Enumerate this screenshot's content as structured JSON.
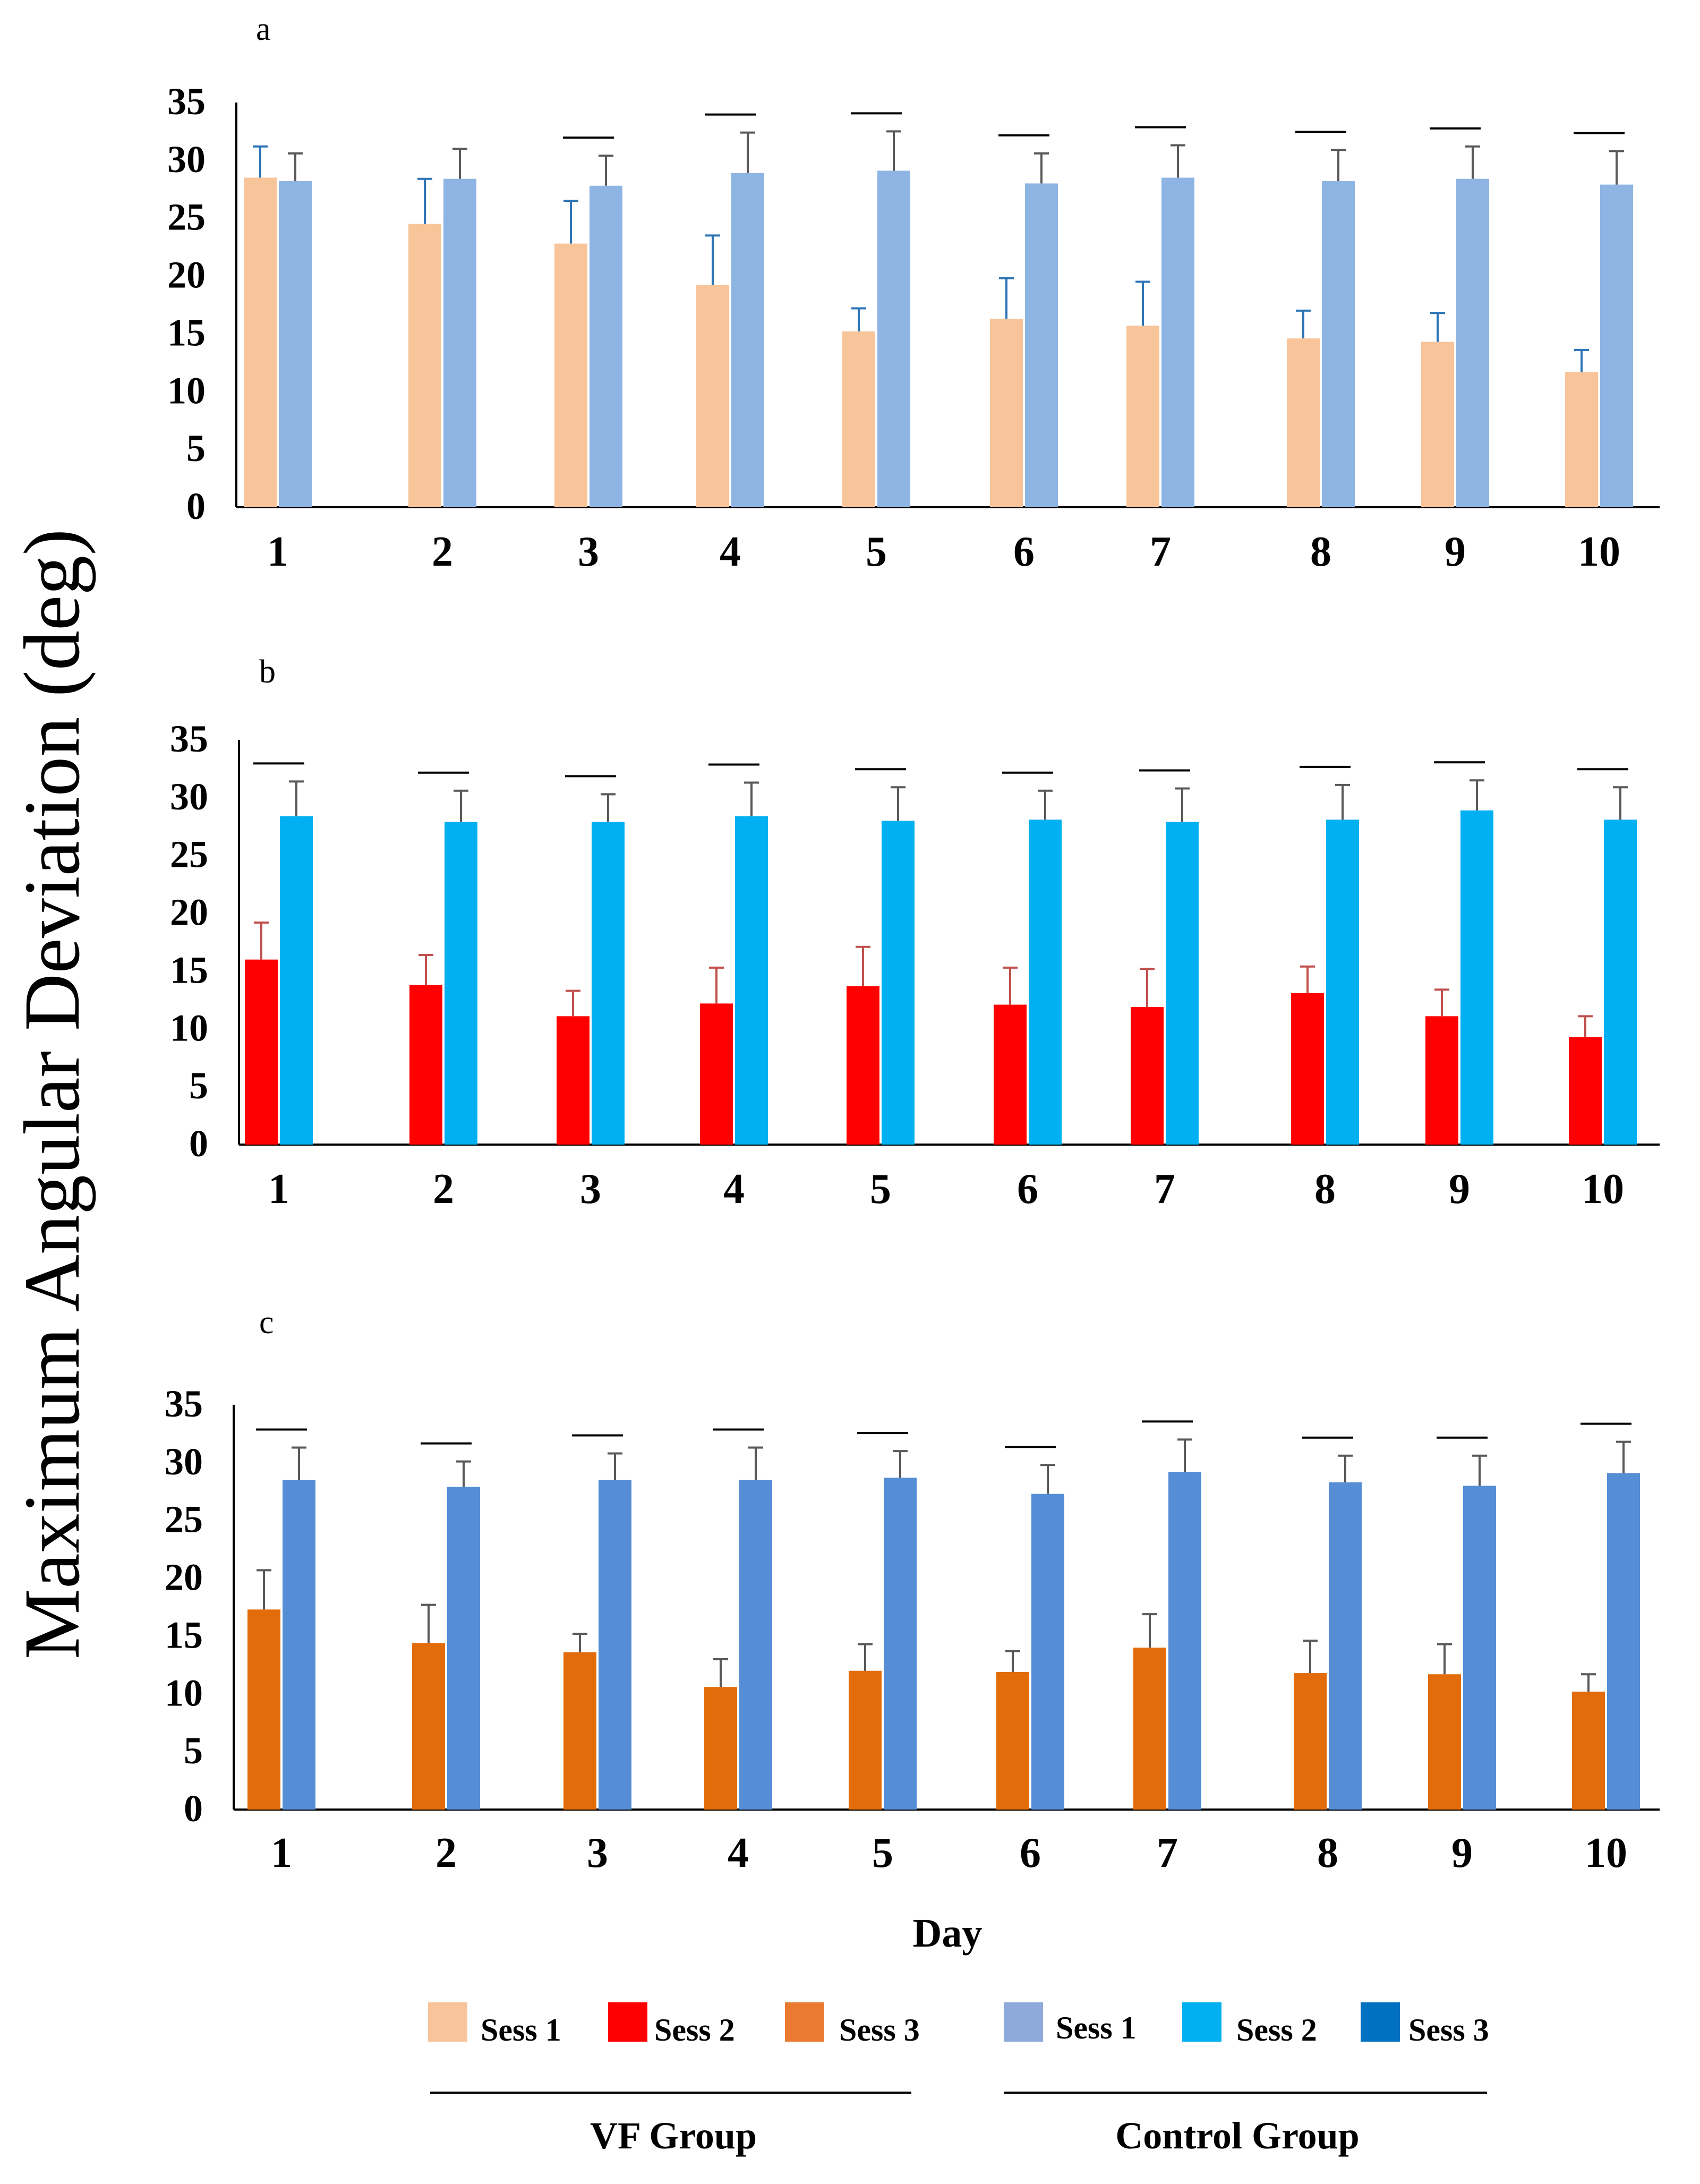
{
  "chart_data": [
    {
      "type": "bar",
      "panel": "a",
      "categories": [
        "1",
        "2",
        "3",
        "4",
        "5",
        "6",
        "7",
        "8",
        "9",
        "10"
      ],
      "series": [
        {
          "name": "Sess 1",
          "group": "VF Group",
          "color": "#f8c49a",
          "error_color": "#2e75b6",
          "values": [
            28.5,
            24.5,
            22.8,
            19.2,
            15.2,
            16.3,
            15.7,
            14.6,
            14.3,
            11.7
          ],
          "errors": [
            2.7,
            3.9,
            3.7,
            4.3,
            2.0,
            3.5,
            3.8,
            2.4,
            2.5,
            1.9
          ]
        },
        {
          "name": "Sess 1",
          "group": "Control Group",
          "color": "#8eb4e3",
          "error_color": "#595959",
          "values": [
            28.2,
            28.4,
            27.8,
            28.9,
            29.1,
            28.0,
            28.5,
            28.2,
            28.4,
            27.9
          ],
          "errors": [
            2.4,
            2.6,
            2.6,
            3.5,
            3.4,
            2.6,
            2.8,
            2.7,
            2.8,
            2.9
          ]
        }
      ],
      "significance_markers": [
        false,
        false,
        true,
        true,
        true,
        true,
        true,
        true,
        true,
        true
      ],
      "ylim": [
        0,
        35
      ],
      "yticks": [
        0,
        5,
        10,
        15,
        20,
        25,
        30,
        35
      ]
    },
    {
      "type": "bar",
      "panel": "b",
      "categories": [
        "1",
        "2",
        "3",
        "4",
        "5",
        "6",
        "7",
        "8",
        "9",
        "10"
      ],
      "series": [
        {
          "name": "Sess 2",
          "group": "VF Group",
          "color": "#ff0000",
          "error_color": "#c0504d",
          "values": [
            16.0,
            13.8,
            11.1,
            12.2,
            13.7,
            12.1,
            11.9,
            13.1,
            11.1,
            9.3
          ],
          "errors": [
            3.2,
            2.6,
            2.2,
            3.1,
            3.4,
            3.2,
            3.3,
            2.3,
            2.3,
            1.8
          ]
        },
        {
          "name": "Sess 2",
          "group": "Control Group",
          "color": "#00b0f0",
          "error_color": "#595959",
          "values": [
            28.4,
            27.9,
            27.9,
            28.4,
            28.0,
            28.1,
            27.9,
            28.1,
            28.9,
            28.1
          ],
          "errors": [
            3.0,
            2.7,
            2.4,
            2.9,
            2.9,
            2.5,
            2.9,
            3.0,
            2.6,
            2.8
          ]
        }
      ],
      "significance_markers": [
        true,
        true,
        true,
        true,
        true,
        true,
        true,
        true,
        true,
        true
      ],
      "ylim": [
        0,
        35
      ],
      "yticks": [
        0,
        5,
        10,
        15,
        20,
        25,
        30,
        35
      ]
    },
    {
      "type": "bar",
      "panel": "c",
      "categories": [
        "1",
        "2",
        "3",
        "4",
        "5",
        "6",
        "7",
        "8",
        "9",
        "10"
      ],
      "series": [
        {
          "name": "Sess 3",
          "group": "VF Group",
          "color": "#e26b0a",
          "error_color": "#595959",
          "values": [
            17.3,
            14.4,
            13.6,
            10.6,
            12.0,
            11.9,
            14.0,
            11.8,
            11.7,
            10.2
          ],
          "errors": [
            3.4,
            3.3,
            1.6,
            2.4,
            2.3,
            1.8,
            2.9,
            2.8,
            2.6,
            1.5
          ]
        },
        {
          "name": "Sess 3",
          "group": "Control Group",
          "color": "#558ed5",
          "error_color": "#595959",
          "values": [
            28.5,
            27.9,
            28.5,
            28.5,
            28.7,
            27.3,
            29.2,
            28.3,
            28.0,
            29.1
          ],
          "errors": [
            2.8,
            2.2,
            2.3,
            2.8,
            2.3,
            2.5,
            2.8,
            2.3,
            2.6,
            2.7
          ]
        }
      ],
      "significance_markers": [
        true,
        true,
        true,
        true,
        true,
        true,
        true,
        true,
        true,
        true
      ],
      "ylim": [
        0,
        35
      ],
      "yticks": [
        0,
        5,
        10,
        15,
        20,
        25,
        30,
        35
      ]
    }
  ],
  "figure": {
    "ylabel": "Maximum Angular Deviation (deg)",
    "xlabel": "Day"
  },
  "legend": {
    "vf_group_label": "VF Group",
    "control_group_label": "Control Group",
    "vf_items": [
      {
        "label": "Sess 1",
        "color": "#f8c49a"
      },
      {
        "label": "Sess 2",
        "color": "#ff0000"
      },
      {
        "label": "Sess 3",
        "color": "#e97a30"
      }
    ],
    "control_items": [
      {
        "label": "Sess 1",
        "color": "#8eaadb"
      },
      {
        "label": "Sess 2",
        "color": "#00b0f0"
      },
      {
        "label": "Sess 3",
        "color": "#0070c0"
      }
    ]
  }
}
